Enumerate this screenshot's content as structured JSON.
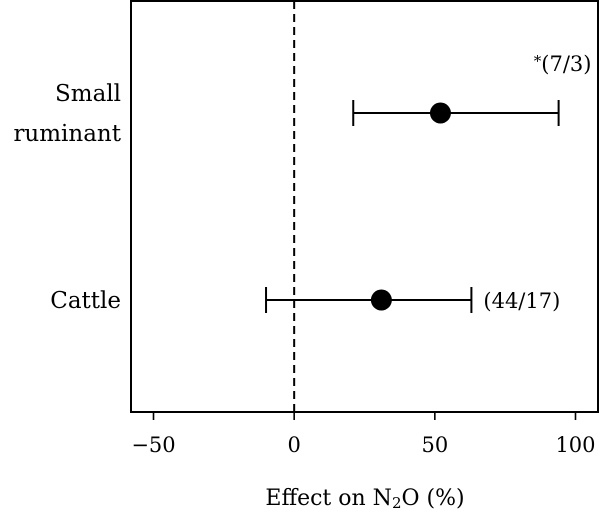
{
  "chart_data": {
    "type": "scatter",
    "subtype": "forest-plot",
    "title": "",
    "xlabel": {
      "prefix": "Effect on N",
      "subscript": "2",
      "suffix": "O (%)"
    },
    "ylabel": "",
    "xlim": [
      -58,
      108
    ],
    "xticks": [
      -50,
      0,
      50,
      100
    ],
    "xtick_labels": [
      "−50",
      "0",
      "50",
      "100"
    ],
    "reference_line": {
      "x": 0,
      "style": "dashed"
    },
    "grid": false,
    "legend": "none",
    "categories": [
      {
        "label_lines": [
          "Small",
          "ruminant"
        ],
        "estimate": 52,
        "ci_low": 21,
        "ci_high": 94,
        "annotation": "(7/3)",
        "marker": "*",
        "annotation_position": "above-right"
      },
      {
        "label_lines": [
          "Cattle"
        ],
        "estimate": 31,
        "ci_low": -10,
        "ci_high": 63,
        "annotation": "(44/17)",
        "marker": "",
        "annotation_position": "right"
      }
    ]
  }
}
